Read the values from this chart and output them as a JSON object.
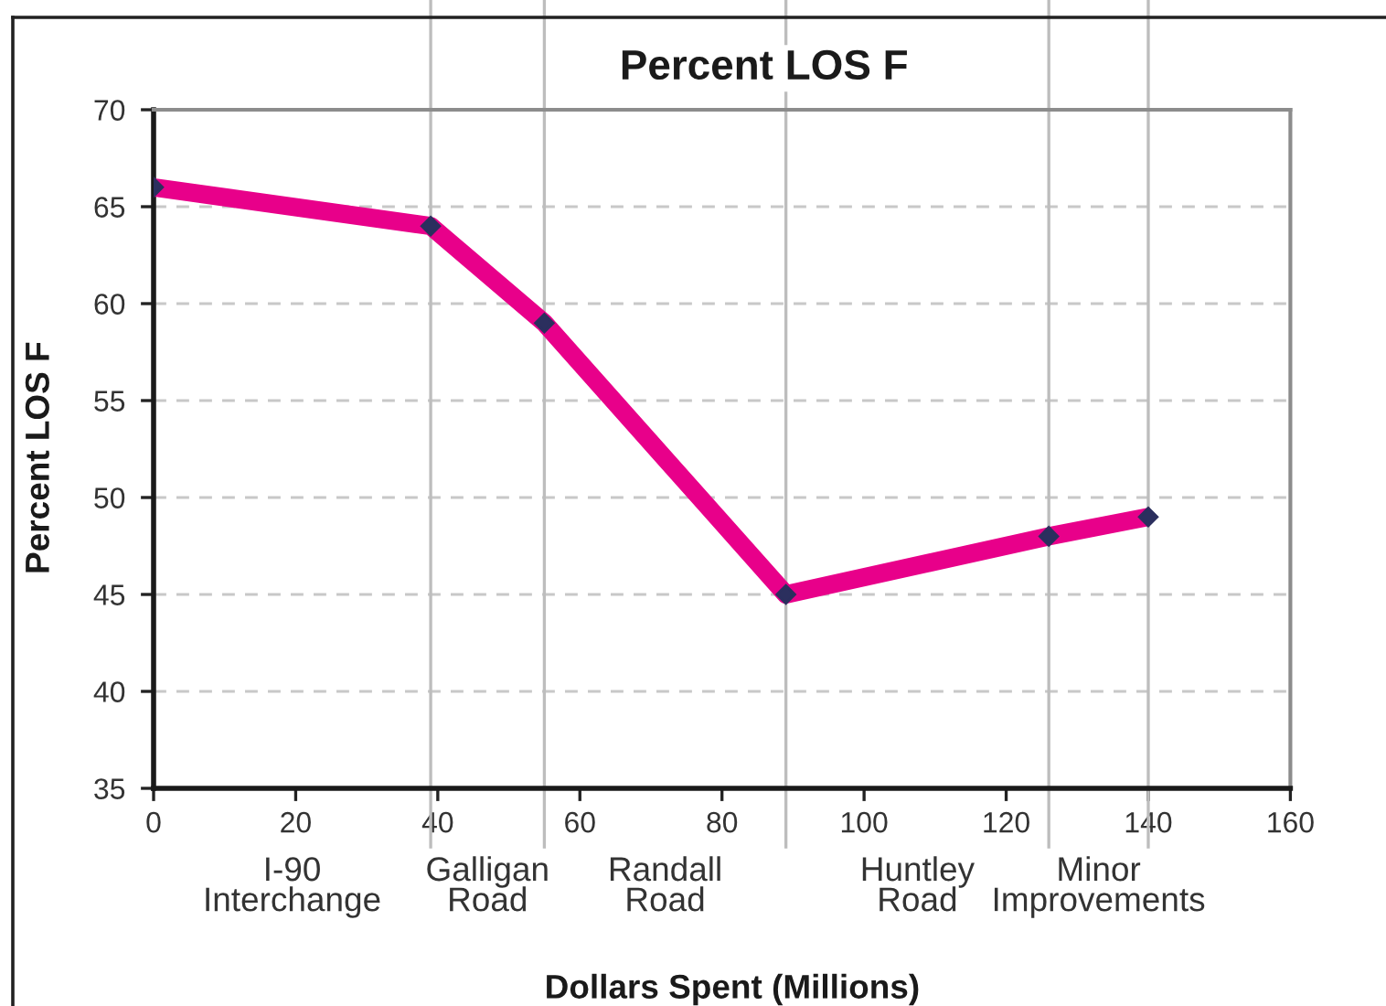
{
  "chart_data": {
    "type": "line",
    "title": "Percent LOS F",
    "xlabel": "Dollars Spent (Millions)",
    "ylabel": "Percent LOS F",
    "x": [
      0,
      39,
      55,
      89,
      126,
      140
    ],
    "series": [
      {
        "color": "#e8008a",
        "values": [
          66,
          64,
          59,
          45,
          48,
          49
        ]
      }
    ],
    "xlim": [
      0,
      160
    ],
    "xticks": [
      0,
      20,
      40,
      60,
      80,
      100,
      120,
      140,
      160
    ],
    "ylim": [
      35,
      70
    ],
    "yticks": [
      35,
      40,
      45,
      50,
      55,
      60,
      65,
      70
    ],
    "grid": "y",
    "marker": "diamond",
    "line_style": "solid",
    "ref_lines": [
      {
        "axis": "x",
        "value": 39,
        "label": "I-90\nInterchange",
        "color": "#bdbdbd"
      },
      {
        "axis": "x",
        "value": 55,
        "label": "Galligan\nRoad",
        "color": "#bdbdbd"
      },
      {
        "axis": "x",
        "value": 89,
        "label": "Randall\nRoad",
        "color": "#bdbdbd"
      },
      {
        "axis": "x",
        "value": 126,
        "label": "Huntley\nRoad",
        "color": "#bdbdbd"
      },
      {
        "axis": "x",
        "value": 140,
        "label": "Minor\nImprovements",
        "color": "#bdbdbd"
      }
    ]
  }
}
